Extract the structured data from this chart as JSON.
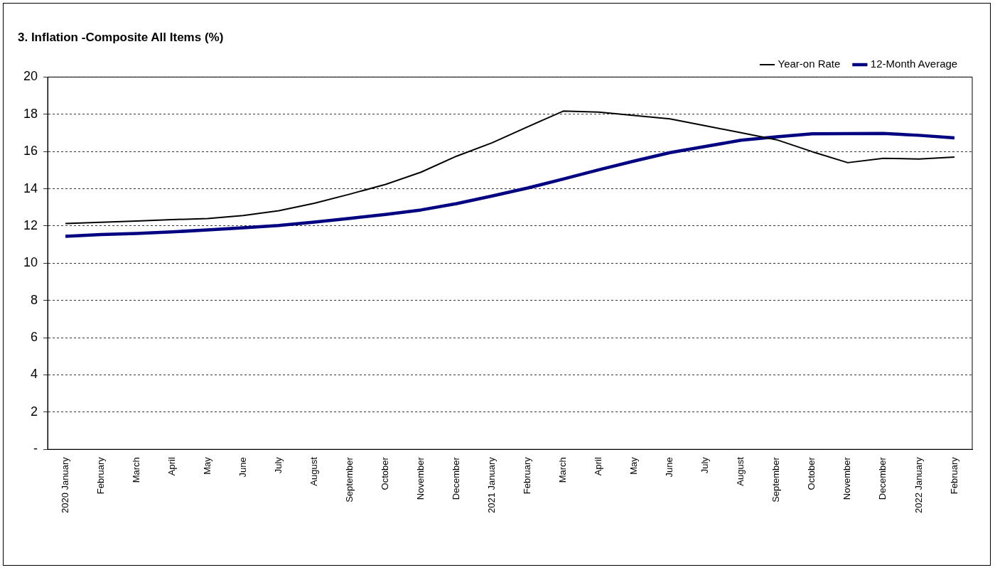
{
  "chart_data": {
    "type": "line",
    "title": "3. Inflation -Composite All Items (%)",
    "categories": [
      "2020 January",
      "February",
      "March",
      "April",
      "May",
      "June",
      "July",
      "August",
      "September",
      "October",
      "November",
      "December",
      "2021 January",
      "February",
      "March",
      "April",
      "May",
      "June",
      "July",
      "August",
      "September",
      "October",
      "November",
      "December",
      "2022 January",
      "February"
    ],
    "series": [
      {
        "name": "Year-on Rate",
        "color": "#000000",
        "values": [
          12.13,
          12.2,
          12.26,
          12.34,
          12.4,
          12.56,
          12.82,
          13.22,
          13.71,
          14.23,
          14.89,
          15.75,
          16.47,
          17.33,
          18.17,
          18.12,
          17.93,
          17.75,
          17.38,
          17.01,
          16.63,
          15.99,
          15.4,
          15.63,
          15.6,
          15.7
        ]
      },
      {
        "name": "12-Month Average",
        "color": "#000080",
        "values": [
          11.44,
          11.54,
          11.6,
          11.68,
          11.79,
          11.9,
          12.03,
          12.21,
          12.41,
          12.62,
          12.86,
          13.2,
          13.61,
          14.04,
          14.52,
          15.02,
          15.49,
          15.94,
          16.27,
          16.61,
          16.79,
          16.95,
          16.96,
          16.97,
          16.87,
          16.73
        ]
      }
    ],
    "ylim": [
      0,
      20
    ],
    "yticks": [
      {
        "value": 0,
        "label": "-"
      },
      2,
      4,
      6,
      8,
      10,
      12,
      14,
      16,
      18,
      20
    ],
    "grid": "y",
    "legend": "top right",
    "marker": "none",
    "line_style": "solid"
  }
}
